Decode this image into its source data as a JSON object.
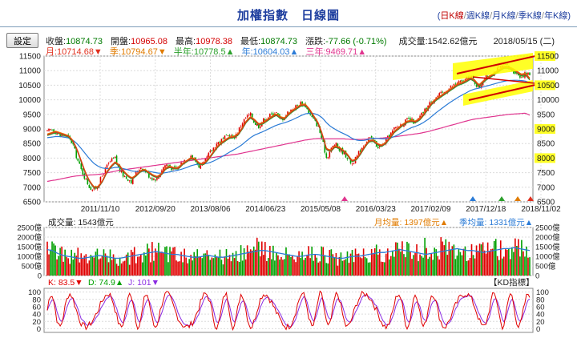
{
  "header": {
    "title": "加權指數　日線圖",
    "period_links": [
      "日K線",
      "週K線",
      "月K線",
      "季K線",
      "年K線"
    ],
    "open_paren": "(",
    "close_paren": ")",
    "separator": "/"
  },
  "toolbar": {
    "settings_label": "設定"
  },
  "quote": {
    "close_label": "收盤:",
    "close": "10874.73",
    "open_label": "開盤:",
    "open": "10965.08",
    "high_label": "最高:",
    "high": "10978.38",
    "low_label": "最低:",
    "low": "10874.73",
    "change_label": "漲跌:",
    "change": "-77.66 (-0.71%)",
    "volume_label": "成交量:",
    "volume": "1542.62億元",
    "date": "2018/05/15 (二)"
  },
  "moving_averages": [
    {
      "text": "月:10714.68▼",
      "color": "#e0301e"
    },
    {
      "text": "季:10794.67▼",
      "color": "#e07b00"
    },
    {
      "text": "半年:10778.5▲",
      "color": "#2ca02c"
    },
    {
      "text": "年:10604.03▲",
      "color": "#2b7bd6"
    },
    {
      "text": "三年:9469.71▲",
      "color": "#e0358f"
    }
  ],
  "colors": {
    "up": "#e00000",
    "down": "#00a000",
    "ma_month": "#e0301e",
    "ma_quarter": "#e07b00",
    "ma_half": "#2ca02c",
    "ma_year": "#2b7bd6",
    "ma_3year": "#e0358f",
    "volume_avg": "#2b7bd6",
    "k_line": "#e00000",
    "d_line": "#8a2be2",
    "highlight": "#ffff00",
    "annotation": "#d00000"
  },
  "chart_data": [
    {
      "type": "candlestick",
      "name": "price",
      "ylim": [
        6500,
        11500
      ],
      "y_ticks": [
        6500,
        7000,
        7500,
        8000,
        8500,
        9000,
        9500,
        10000,
        10500,
        11000,
        11500
      ],
      "x_tick_labels": [
        "2011/11/10",
        "2012/09/20",
        "2013/08/06",
        "2014/06/23",
        "2015/05/08",
        "2016/03/23",
        "2017/02/09",
        "2017/12/18",
        "2018/11/02"
      ],
      "grid": true,
      "close_series": [
        8900,
        9000,
        8900,
        8750,
        8800,
        8700,
        8500,
        8000,
        7600,
        7300,
        7000,
        6900,
        7100,
        7400,
        7700,
        7900,
        8000,
        7600,
        7400,
        7300,
        7200,
        7500,
        7700,
        7600,
        7400,
        7300,
        7300,
        7600,
        7800,
        7700,
        7600,
        7700,
        7900,
        8000,
        8100,
        7900,
        7700,
        7800,
        8100,
        8300,
        8500,
        8600,
        8700,
        8800,
        8700,
        8900,
        9200,
        9400,
        9500,
        9200,
        9100,
        9300,
        9400,
        9500,
        9600,
        9300,
        9400,
        9600,
        9700,
        9800,
        9900,
        9800,
        9500,
        9300,
        9100,
        8600,
        8000,
        8300,
        8500,
        8300,
        8200,
        8000,
        7800,
        8000,
        8300,
        8500,
        8700,
        8600,
        8400,
        8400,
        8600,
        8800,
        9000,
        9100,
        9200,
        9300,
        9300,
        9200,
        9400,
        9600,
        9800,
        10000,
        10100,
        10200,
        10300,
        10400,
        10500,
        10600,
        10600,
        10700,
        10800,
        10600,
        10400,
        10700,
        10800,
        10900,
        11000,
        11100,
        11200,
        11100,
        11000,
        10900,
        10800,
        10900,
        10874
      ],
      "ma_month": [
        8800,
        8850,
        8900,
        8850,
        8800,
        8750,
        8600,
        8300,
        7900,
        7500,
        7200,
        7000,
        7000,
        7200,
        7500,
        7700,
        7850,
        7750,
        7550,
        7400,
        7300,
        7400,
        7550,
        7600,
        7500,
        7400,
        7350,
        7450,
        7650,
        7700,
        7650,
        7650,
        7800,
        7900,
        8000,
        7950,
        7800,
        7800,
        7950,
        8150,
        8350,
        8500,
        8600,
        8700,
        8720,
        8800,
        9000,
        9250,
        9400,
        9300,
        9150,
        9200,
        9300,
        9400,
        9500,
        9400,
        9350,
        9500,
        9620,
        9720,
        9820,
        9820,
        9650,
        9420,
        9200,
        8800,
        8300,
        8250,
        8400,
        8350,
        8250,
        8100,
        7900,
        7950,
        8150,
        8380,
        8580,
        8600,
        8480,
        8420,
        8520,
        8700,
        8900,
        9020,
        9140,
        9240,
        9280,
        9240,
        9330,
        9500,
        9700,
        9900,
        10020,
        10120,
        10220,
        10320,
        10420,
        10520,
        10570,
        10640,
        10740,
        10650,
        10480,
        10620,
        10740,
        10830,
        10930,
        11030,
        11120,
        11110,
        11040,
        10950,
        10850,
        10880,
        10714
      ],
      "ma_year": [
        8700,
        8720,
        8740,
        8740,
        8720,
        8690,
        8620,
        8500,
        8330,
        8150,
        7970,
        7820,
        7720,
        7660,
        7640,
        7650,
        7680,
        7680,
        7640,
        7600,
        7560,
        7540,
        7540,
        7550,
        7540,
        7520,
        7490,
        7480,
        7500,
        7530,
        7560,
        7590,
        7630,
        7680,
        7740,
        7780,
        7790,
        7800,
        7830,
        7880,
        7950,
        8030,
        8110,
        8200,
        8280,
        8360,
        8460,
        8580,
        8700,
        8790,
        8850,
        8910,
        8980,
        9050,
        9120,
        9170,
        9210,
        9260,
        9320,
        9390,
        9460,
        9520,
        9540,
        9530,
        9480,
        9380,
        9210,
        9080,
        8990,
        8910,
        8840,
        8770,
        8680,
        8620,
        8600,
        8610,
        8650,
        8680,
        8680,
        8660,
        8660,
        8690,
        8740,
        8810,
        8890,
        8970,
        9040,
        9090,
        9150,
        9230,
        9330,
        9450,
        9570,
        9680,
        9790,
        9890,
        9990,
        10080,
        10160,
        10240,
        10320,
        10370,
        10400,
        10440,
        10480,
        10520,
        10560,
        10600,
        10640,
        10660,
        10670,
        10670,
        10660,
        10640,
        10604
      ],
      "ma_3year": [
        7200,
        7230,
        7250,
        7280,
        7310,
        7340,
        7370,
        7390,
        7400,
        7410,
        7420,
        7430,
        7440,
        7460,
        7490,
        7520,
        7550,
        7580,
        7600,
        7620,
        7640,
        7660,
        7680,
        7700,
        7720,
        7740,
        7760,
        7780,
        7800,
        7820,
        7840,
        7860,
        7880,
        7900,
        7920,
        7940,
        7960,
        7980,
        8000,
        8020,
        8040,
        8060,
        8080,
        8100,
        8120,
        8140,
        8170,
        8200,
        8230,
        8260,
        8290,
        8320,
        8350,
        8380,
        8410,
        8440,
        8470,
        8500,
        8530,
        8560,
        8590,
        8620,
        8640,
        8660,
        8670,
        8670,
        8660,
        8660,
        8660,
        8660,
        8660,
        8650,
        8640,
        8640,
        8640,
        8650,
        8660,
        8670,
        8680,
        8690,
        8700,
        8710,
        8730,
        8750,
        8770,
        8790,
        8810,
        8830,
        8850,
        8880,
        8910,
        8950,
        8990,
        9030,
        9070,
        9110,
        9150,
        9190,
        9230,
        9270,
        9310,
        9340,
        9360,
        9380,
        9400,
        9420,
        9440,
        9460,
        9480,
        9500,
        9510,
        9520,
        9530,
        9540,
        9470
      ]
    },
    {
      "type": "bar",
      "name": "volume",
      "title": "成交量: 1543億元",
      "monthly_avg_label": "月均量: 1397億元▲",
      "quarterly_avg_label": "季均量: 1331億元▲",
      "ylim": [
        0,
        2500
      ],
      "y_tick_labels": [
        "2500億",
        "2000億",
        "1500億",
        "1000億",
        "500億",
        "0"
      ],
      "unit": "億",
      "avg_series": [
        1350,
        1300,
        1150,
        1050,
        1000,
        950,
        900,
        900,
        950,
        1000,
        1050,
        1000,
        950,
        900,
        900,
        950,
        1000,
        1050,
        1100,
        1150,
        1200,
        1250,
        1200,
        1150,
        1100,
        1100,
        1050,
        1000,
        950,
        950,
        1000,
        1050,
        1000,
        950,
        950,
        1000,
        1050,
        1100,
        1150,
        1200,
        1250,
        1300,
        1300,
        1250,
        1200,
        1150,
        1100,
        1050,
        1000,
        1000,
        1050,
        1100,
        1100,
        1050,
        1000,
        950,
        900,
        900,
        950,
        1000,
        1000,
        1050,
        1100,
        1150,
        1200,
        1200,
        1250,
        1300,
        1350,
        1300,
        1250,
        1200,
        1150,
        1100,
        1150,
        1200,
        1250,
        1300,
        1350,
        1400,
        1350,
        1300,
        1300,
        1250,
        1200,
        1250,
        1300,
        1350,
        1400,
        1400,
        1450,
        1400,
        1350,
        1300
      ]
    },
    {
      "type": "line",
      "name": "kd",
      "k_label": "K: 83.5▼",
      "d_label": "D: 74.9▲",
      "j_label": "J: 101▼",
      "indicator_label": "【KD指標】",
      "ylim": [
        -10,
        110
      ],
      "y_ticks": [
        100,
        80,
        60,
        40,
        20,
        0
      ]
    }
  ]
}
